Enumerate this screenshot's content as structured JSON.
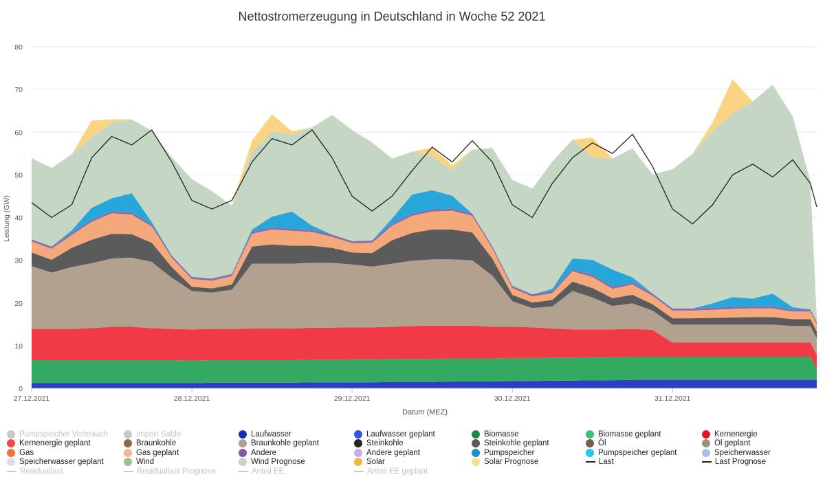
{
  "chart_data": {
    "type": "area",
    "title": "Nettostromerzeugung in Deutschland in Woche 52 2021",
    "xlabel": "Datum (MEZ)",
    "ylabel": "Leistung (GW)",
    "ylim": [
      0,
      80
    ],
    "yticks": [
      0,
      10,
      20,
      30,
      40,
      50,
      60,
      70,
      80
    ],
    "x_range_days": [
      0,
      4.9
    ],
    "xticks": [
      {
        "label": "27.12.2021",
        "day": 0
      },
      {
        "label": "28.12.2021",
        "day": 1
      },
      {
        "label": "29.12.2021",
        "day": 2
      },
      {
        "label": "30.12.2021",
        "day": 3
      },
      {
        "label": "31.12.2021",
        "day": 4
      }
    ],
    "x_days": [
      0,
      0.125,
      0.25,
      0.375,
      0.5,
      0.625,
      0.75,
      0.875,
      1,
      1.125,
      1.25,
      1.375,
      1.5,
      1.625,
      1.75,
      1.875,
      2,
      2.125,
      2.25,
      2.375,
      2.5,
      2.625,
      2.75,
      2.875,
      3,
      3.125,
      3.25,
      3.375,
      3.5,
      3.625,
      3.75,
      3.875,
      4,
      4.125,
      4.25,
      4.375,
      4.5,
      4.625,
      4.75,
      4.86,
      4.9
    ],
    "series": [
      {
        "name": "Laufwasser",
        "color": "#2c3fc4",
        "values": [
          1.2,
          1.2,
          1.2,
          1.2,
          1.2,
          1.2,
          1.2,
          1.2,
          1.2,
          1.3,
          1.3,
          1.3,
          1.3,
          1.3,
          1.4,
          1.4,
          1.4,
          1.4,
          1.5,
          1.5,
          1.5,
          1.6,
          1.6,
          1.6,
          1.7,
          1.7,
          1.8,
          1.8,
          1.9,
          1.9,
          2.0,
          2.0,
          2.0,
          2.0,
          2.0,
          2.0,
          2.0,
          2.0,
          2.0,
          2.0,
          2.0
        ]
      },
      {
        "name": "Biomasse",
        "color": "#33a961",
        "values": [
          5.4,
          5.4,
          5.4,
          5.4,
          5.4,
          5.4,
          5.4,
          5.4,
          5.3,
          5.3,
          5.3,
          5.3,
          5.3,
          5.3,
          5.3,
          5.3,
          5.4,
          5.4,
          5.4,
          5.4,
          5.4,
          5.4,
          5.4,
          5.4,
          5.4,
          5.4,
          5.4,
          5.4,
          5.4,
          5.4,
          5.4,
          5.4,
          5.4,
          5.4,
          5.4,
          5.4,
          5.4,
          5.4,
          5.4,
          5.4,
          2.5
        ]
      },
      {
        "name": "Kernenergie",
        "color": "#f23a47",
        "values": [
          7.3,
          7.3,
          7.3,
          7.5,
          7.8,
          7.8,
          7.5,
          7.3,
          7.3,
          7.3,
          7.3,
          7.4,
          7.4,
          7.4,
          7.5,
          7.5,
          7.5,
          7.5,
          7.5,
          7.7,
          7.8,
          7.7,
          7.7,
          7.4,
          7.3,
          7.2,
          6.8,
          6.6,
          6.5,
          6.5,
          6.5,
          6.3,
          3.3,
          3.3,
          3.3,
          3.3,
          3.3,
          3.3,
          3.3,
          3.3,
          3.3
        ]
      },
      {
        "name": "Braunkohle",
        "color": "#b3a190",
        "values": [
          14.7,
          13.2,
          14.5,
          15.2,
          16.0,
          16.2,
          15.5,
          12.0,
          9.0,
          8.5,
          9.2,
          15.2,
          15.2,
          15.2,
          15.2,
          15.2,
          14.7,
          14.2,
          14.8,
          15.3,
          15.5,
          15.5,
          15.3,
          12.0,
          6.0,
          4.5,
          5.2,
          9.0,
          7.5,
          5.5,
          6.0,
          4.5,
          4.2,
          4.2,
          4.2,
          4.2,
          4.2,
          4.2,
          3.9,
          3.9,
          3.9
        ]
      },
      {
        "name": "Steinkohle",
        "color": "#5b5b5b",
        "values": [
          3.2,
          3.0,
          4.5,
          5.5,
          5.8,
          5.5,
          4.5,
          2.5,
          1.0,
          1.0,
          1.2,
          4.0,
          4.5,
          4.2,
          4.0,
          3.5,
          2.8,
          3.2,
          5.5,
          6.5,
          7.0,
          7.0,
          6.5,
          4.0,
          1.5,
          1.3,
          1.5,
          2.2,
          2.2,
          1.8,
          2.0,
          1.5,
          1.5,
          1.5,
          1.6,
          1.7,
          1.8,
          1.8,
          1.6,
          1.6,
          1.6
        ]
      },
      {
        "name": "Gas",
        "color": "#f5a87a",
        "values": [
          2.6,
          2.6,
          3.0,
          4.2,
          4.8,
          4.6,
          3.8,
          2.2,
          1.8,
          1.8,
          2.0,
          3.0,
          3.5,
          3.5,
          3.2,
          2.6,
          2.2,
          2.4,
          3.4,
          4.0,
          4.2,
          4.4,
          3.9,
          2.4,
          1.6,
          1.4,
          1.6,
          2.4,
          2.6,
          2.2,
          2.4,
          2.0,
          1.8,
          1.8,
          1.9,
          2.0,
          2.0,
          2.0,
          1.8,
          1.8,
          1.8
        ]
      },
      {
        "name": "Andere",
        "color": "#8a6ca8",
        "values": [
          0.5,
          0.5,
          0.5,
          0.5,
          0.5,
          0.5,
          0.5,
          0.5,
          0.5,
          0.5,
          0.5,
          0.5,
          0.5,
          0.5,
          0.5,
          0.5,
          0.5,
          0.5,
          0.5,
          0.5,
          0.5,
          0.5,
          0.5,
          0.5,
          0.5,
          0.5,
          0.5,
          0.5,
          0.5,
          0.5,
          0.5,
          0.5,
          0.5,
          0.5,
          0.5,
          0.5,
          0.5,
          0.5,
          0.5,
          0.5,
          0.5
        ]
      },
      {
        "name": "Pumpspeicher",
        "color": "#26a6d9",
        "values": [
          0,
          0,
          0.6,
          2.8,
          3.0,
          4.5,
          0.5,
          0,
          0,
          0,
          0,
          0.5,
          2.5,
          4.0,
          1.0,
          0,
          0,
          0,
          1.2,
          4.5,
          4.5,
          3.0,
          0,
          0,
          0,
          0,
          0.5,
          2.5,
          3.5,
          4.0,
          1.2,
          0,
          0,
          0,
          1.0,
          2.3,
          1.8,
          3.0,
          0.5,
          0,
          0
        ]
      },
      {
        "name": "Wind",
        "color": "#c5d6c4",
        "values": [
          19.0,
          18.4,
          17.8,
          16.6,
          17.7,
          17.3,
          21.4,
          23.0,
          22.9,
          20.5,
          16.0,
          18.0,
          20.0,
          18.0,
          23.0,
          28.0,
          26.0,
          23.0,
          14.0,
          10.0,
          8.0,
          6.0,
          15.0,
          23.0,
          24.8,
          24.8,
          29.8,
          27.8,
          24.1,
          26.0,
          30.2,
          27.9,
          32.6,
          36.2,
          40.4,
          43.0,
          46.2,
          48.9,
          44.7,
          30.0,
          1.0
        ]
      },
      {
        "name": "Solar",
        "color": "#fad482",
        "values": [
          0,
          0,
          0,
          3.8,
          0.8,
          0,
          0,
          0,
          0,
          0,
          0,
          2.8,
          4.0,
          0.8,
          0,
          0,
          0,
          0,
          0,
          0,
          2.0,
          1.2,
          0,
          0,
          0,
          0,
          0,
          0,
          4.5,
          0,
          0,
          0,
          0,
          0,
          2.0,
          8.0,
          0,
          0,
          0,
          0,
          0
        ]
      }
    ],
    "last_series": {
      "name": "Last",
      "color": "#222222",
      "values": [
        43.5,
        40.0,
        43.0,
        54.0,
        59.0,
        57.0,
        60.5,
        53.0,
        44.0,
        42.0,
        44.0,
        53.0,
        58.5,
        57.0,
        60.5,
        54.0,
        45.0,
        41.5,
        45.0,
        51.0,
        56.5,
        53.0,
        58.0,
        53.0,
        43.0,
        40.0,
        48.0,
        54.0,
        57.5,
        55.0,
        59.5,
        52.0,
        42.0,
        38.5,
        43.0,
        50.0,
        52.5,
        49.5,
        53.5,
        48.0,
        42.5
      ]
    },
    "legend": [
      {
        "name": "Pumpspeicher Verbrauch",
        "color": "#c8c8c8",
        "marker": "dot",
        "active": false
      },
      {
        "name": "Import Saldo",
        "color": "#c8c8c8",
        "marker": "dot",
        "active": false
      },
      {
        "name": "Laufwasser",
        "color": "#1a2fb0",
        "marker": "dot",
        "active": true
      },
      {
        "name": "Laufwasser geplant",
        "color": "#2f55e0",
        "marker": "dot",
        "active": true
      },
      {
        "name": "Biomasse",
        "color": "#1b8c3e",
        "marker": "dot",
        "active": true
      },
      {
        "name": "Biomasse geplant",
        "color": "#3cbf77",
        "marker": "dot",
        "active": true
      },
      {
        "name": "Kernenergie",
        "color": "#e3141f",
        "marker": "dot",
        "active": true
      },
      {
        "name": "Kernenergie geplant",
        "color": "#f04a4a",
        "marker": "dot",
        "active": true
      },
      {
        "name": "Braunkohle",
        "color": "#8a6a4c",
        "marker": "dot",
        "active": true
      },
      {
        "name": "Braunkohle geplant",
        "color": "#b3a190",
        "marker": "dot",
        "active": true
      },
      {
        "name": "Steinkohle",
        "color": "#262626",
        "marker": "dot",
        "active": true
      },
      {
        "name": "Steinkohle geplant",
        "color": "#5b5b5b",
        "marker": "dot",
        "active": true
      },
      {
        "name": "Öl",
        "color": "#7a5a4a",
        "marker": "dot",
        "active": true
      },
      {
        "name": "Öl geplant",
        "color": "#a38f80",
        "marker": "dot",
        "active": true
      },
      {
        "name": "Gas",
        "color": "#f0733c",
        "marker": "dot",
        "active": true
      },
      {
        "name": "Gas geplant",
        "color": "#f5b78c",
        "marker": "dot",
        "active": true
      },
      {
        "name": "Andere",
        "color": "#7d5aa3",
        "marker": "dot",
        "active": true
      },
      {
        "name": "Andere geplant",
        "color": "#c9aee6",
        "marker": "dot",
        "active": true
      },
      {
        "name": "Pumpspeicher",
        "color": "#1e8fc8",
        "marker": "dot",
        "active": true
      },
      {
        "name": "Pumpspeicher geplant",
        "color": "#29c3ef",
        "marker": "dot",
        "active": true
      },
      {
        "name": "Speicherwasser",
        "color": "#a8bfe8",
        "marker": "dot",
        "active": true
      },
      {
        "name": "Speicherwasser geplant",
        "color": "#d7dff5",
        "marker": "dot",
        "active": true
      },
      {
        "name": "Wind",
        "color": "#9bbf98",
        "marker": "dot",
        "active": true
      },
      {
        "name": "Wind Prognose",
        "color": "#c5d6c4",
        "marker": "dot",
        "active": true
      },
      {
        "name": "Solar",
        "color": "#f4b642",
        "marker": "dot",
        "active": true
      },
      {
        "name": "Solar Prognose",
        "color": "#fae08e",
        "marker": "dot",
        "active": true
      },
      {
        "name": "Last",
        "color": "#222222",
        "marker": "line",
        "active": true
      },
      {
        "name": "Last Prognose",
        "color": "#222222",
        "marker": "line",
        "active": true
      },
      {
        "name": "Residuallast",
        "color": "#c8c8c8",
        "marker": "line",
        "active": false
      },
      {
        "name": "Residuallast Prognose",
        "color": "#c8c8c8",
        "marker": "line",
        "active": false
      },
      {
        "name": "Anteil EE",
        "color": "#c8c8c8",
        "marker": "line",
        "active": false
      },
      {
        "name": "Anteil EE geplant",
        "color": "#c8c8c8",
        "marker": "line",
        "active": false
      }
    ]
  }
}
